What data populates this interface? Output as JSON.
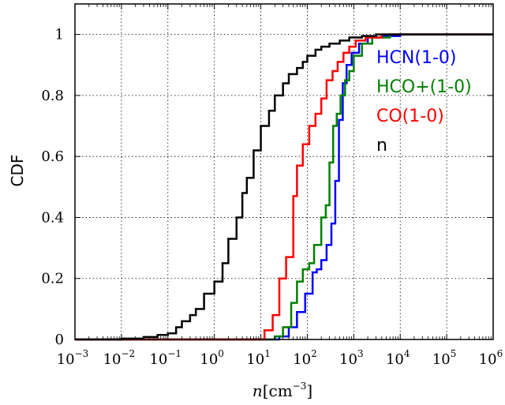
{
  "chart_data": {
    "type": "line",
    "step": true,
    "xscale": "log",
    "xlim": [
      0.001,
      1000000
    ],
    "ylim": [
      0,
      1.1
    ],
    "xlabel": {
      "var": "n",
      "unit": "cm",
      "exp": "−3"
    },
    "ylabel": "CDF",
    "grid": true,
    "legend_position": "inside-right",
    "x_ticks": [
      {
        "base": "10",
        "exp": "−3",
        "value": 0.001
      },
      {
        "base": "10",
        "exp": "−2",
        "value": 0.01
      },
      {
        "base": "10",
        "exp": "−1",
        "value": 0.1
      },
      {
        "base": "10",
        "exp": "0",
        "value": 1
      },
      {
        "base": "10",
        "exp": "1",
        "value": 10
      },
      {
        "base": "10",
        "exp": "2",
        "value": 100
      },
      {
        "base": "10",
        "exp": "3",
        "value": 1000
      },
      {
        "base": "10",
        "exp": "4",
        "value": 10000
      },
      {
        "base": "10",
        "exp": "5",
        "value": 100000
      },
      {
        "base": "10",
        "exp": "6",
        "value": 1000000
      }
    ],
    "y_ticks": [
      {
        "label": "0",
        "value": 0
      },
      {
        "label": "0.2",
        "value": 0.2
      },
      {
        "label": "0.4",
        "value": 0.4
      },
      {
        "label": "0.6",
        "value": 0.6
      },
      {
        "label": "0.8",
        "value": 0.8
      },
      {
        "label": "1",
        "value": 1
      }
    ],
    "series": [
      {
        "name": "HCN(1-0)",
        "color": "#0000ff",
        "points": [
          [
            0.001,
            0
          ],
          [
            15,
            0
          ],
          [
            25,
            0.01
          ],
          [
            40,
            0.04
          ],
          [
            60,
            0.09
          ],
          [
            90,
            0.15
          ],
          [
            130,
            0.22
          ],
          [
            160,
            0.23
          ],
          [
            200,
            0.26
          ],
          [
            260,
            0.31
          ],
          [
            330,
            0.38
          ],
          [
            400,
            0.52
          ],
          [
            480,
            0.72
          ],
          [
            580,
            0.84
          ],
          [
            700,
            0.9
          ],
          [
            900,
            0.94
          ],
          [
            1300,
            0.97
          ],
          [
            2000,
            0.99
          ],
          [
            4000,
            0.995
          ],
          [
            10000,
            1
          ],
          [
            1000000,
            1
          ]
        ]
      },
      {
        "name": "HCO+(1-0)",
        "color": "#008000",
        "points": [
          [
            0.001,
            0
          ],
          [
            12,
            0
          ],
          [
            20,
            0.01
          ],
          [
            30,
            0.04
          ],
          [
            45,
            0.12
          ],
          [
            60,
            0.19
          ],
          [
            80,
            0.23
          ],
          [
            110,
            0.25
          ],
          [
            140,
            0.31
          ],
          [
            200,
            0.4
          ],
          [
            250,
            0.44
          ],
          [
            300,
            0.58
          ],
          [
            360,
            0.7
          ],
          [
            430,
            0.74
          ],
          [
            520,
            0.8
          ],
          [
            650,
            0.85
          ],
          [
            800,
            0.88
          ],
          [
            1000,
            0.93
          ],
          [
            1500,
            0.97
          ],
          [
            2500,
            0.99
          ],
          [
            6000,
            1
          ],
          [
            1000000,
            1
          ]
        ]
      },
      {
        "name": "CO(1-0)",
        "color": "#ff0000",
        "points": [
          [
            0.001,
            0
          ],
          [
            8,
            0
          ],
          [
            12,
            0.03
          ],
          [
            18,
            0.08
          ],
          [
            25,
            0.2
          ],
          [
            35,
            0.27
          ],
          [
            50,
            0.47
          ],
          [
            60,
            0.57
          ],
          [
            80,
            0.64
          ],
          [
            110,
            0.7
          ],
          [
            150,
            0.74
          ],
          [
            200,
            0.79
          ],
          [
            260,
            0.85
          ],
          [
            350,
            0.88
          ],
          [
            450,
            0.91
          ],
          [
            600,
            0.94
          ],
          [
            800,
            0.96
          ],
          [
            1100,
            0.98
          ],
          [
            1800,
            0.99
          ],
          [
            4000,
            1
          ],
          [
            1000000,
            1
          ]
        ]
      },
      {
        "name": "n",
        "color": "#000000",
        "points": [
          [
            0.001,
            0
          ],
          [
            0.01,
            0.003
          ],
          [
            0.03,
            0.008
          ],
          [
            0.06,
            0.015
          ],
          [
            0.1,
            0.02
          ],
          [
            0.15,
            0.04
          ],
          [
            0.2,
            0.06
          ],
          [
            0.3,
            0.08
          ],
          [
            0.4,
            0.1
          ],
          [
            0.6,
            0.15
          ],
          [
            1,
            0.19
          ],
          [
            1.5,
            0.25
          ],
          [
            2,
            0.33
          ],
          [
            3,
            0.4
          ],
          [
            4,
            0.48
          ],
          [
            5,
            0.53
          ],
          [
            7,
            0.62
          ],
          [
            10,
            0.7
          ],
          [
            15,
            0.75
          ],
          [
            20,
            0.8
          ],
          [
            30,
            0.84
          ],
          [
            40,
            0.87
          ],
          [
            60,
            0.89
          ],
          [
            80,
            0.91
          ],
          [
            100,
            0.93
          ],
          [
            150,
            0.95
          ],
          [
            200,
            0.96
          ],
          [
            300,
            0.97
          ],
          [
            500,
            0.98
          ],
          [
            800,
            0.99
          ],
          [
            1500,
            0.995
          ],
          [
            3000,
            1
          ],
          [
            1000000,
            1
          ]
        ]
      }
    ],
    "legend_order": [
      0,
      1,
      2,
      3
    ]
  }
}
